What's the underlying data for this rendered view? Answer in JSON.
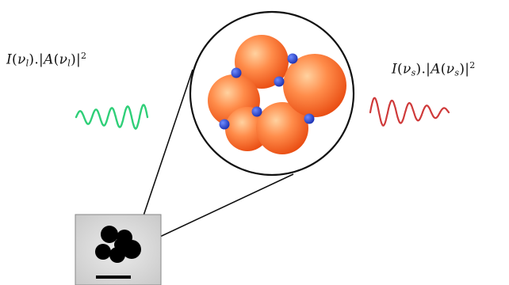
{
  "formulas": {
    "left": {
      "text": "I(ν_l).|A(ν_l)|²",
      "intensity_symbol": "I",
      "amplitude_symbol": "A",
      "freq_symbol": "ν",
      "subscript": "l",
      "exponent": "2"
    },
    "right": {
      "text": "I(ν_s).|A(ν_s)|²",
      "intensity_symbol": "I",
      "amplitude_symbol": "A",
      "freq_symbol": "ν",
      "subscript": "s",
      "exponent": "2"
    }
  },
  "colors": {
    "incident_wave": "#2fcf78",
    "scattered_wave": "#cf3a3a",
    "sphere_light": "#ffd2a0",
    "sphere_mid": "#ff8c4a",
    "sphere_dark": "#e84a10",
    "dot_light": "#6f8cff",
    "dot_dark": "#1a2fb0",
    "lines": "#111111",
    "particle": "#000000",
    "micrograph_bg": "#d9d9d9"
  },
  "icons": {
    "incident": "sine-wave-icon",
    "scattered": "sine-wave-icon"
  }
}
